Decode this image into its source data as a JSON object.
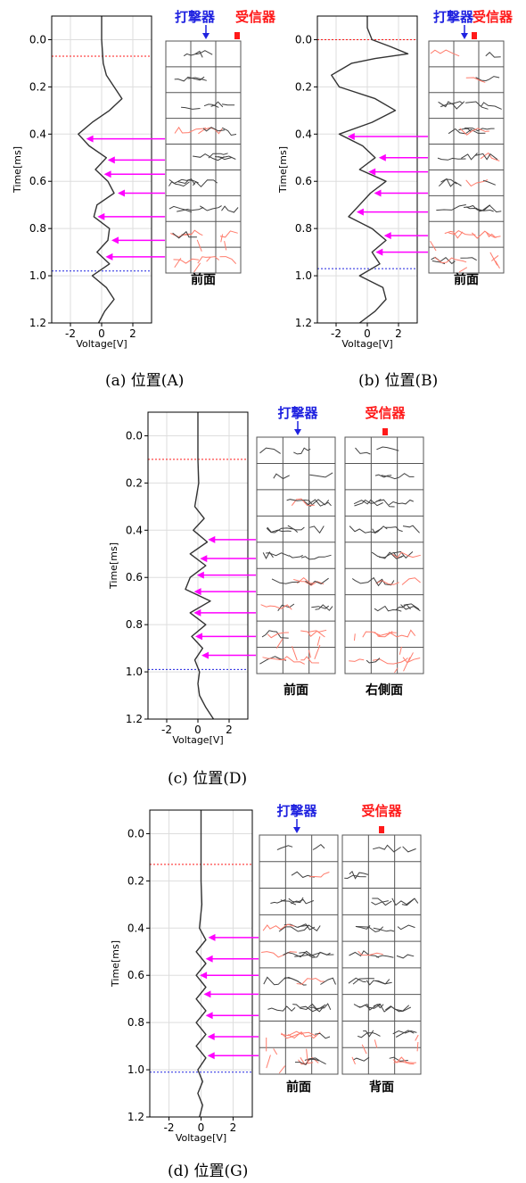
{
  "colors": {
    "hammer": "#1f22e0",
    "receiver": "#ff1a1a",
    "arrow": "#ff00ff",
    "trace": "#333333",
    "grid": "#dddddd",
    "crack_black": "#404040",
    "crack_red": "#ff7b6b"
  },
  "chart_data": [
    {
      "type": "line",
      "caption": "(a) 位置(A)",
      "xlabel": "Voltage[V]",
      "ylabel": "Time[ms]",
      "xlim": [
        -3.2,
        3.2
      ],
      "ylim": [
        1.2,
        -0.1
      ],
      "xticks": [
        -2,
        0,
        2
      ],
      "yticks": [
        "0.0",
        "0.2",
        "0.4",
        "0.6",
        "0.8",
        "1.0",
        "1.2"
      ],
      "grid": true,
      "red_line_t": 0.07,
      "blue_line_t": 0.98,
      "series": [
        {
          "t": [
            -0.1,
            0.0,
            0.05,
            0.1,
            0.15,
            0.2,
            0.25,
            0.3,
            0.35,
            0.4,
            0.45,
            0.5,
            0.55,
            0.6,
            0.65,
            0.7,
            0.75,
            0.8,
            0.85,
            0.9,
            0.95,
            1.0,
            1.05,
            1.1,
            1.15,
            1.2
          ],
          "v": [
            0,
            0,
            0.05,
            0.1,
            0.3,
            0.8,
            1.3,
            0.5,
            -0.6,
            -1.5,
            -0.8,
            0.3,
            -0.4,
            0.4,
            0.8,
            -0.3,
            -0.5,
            0.5,
            0.4,
            -0.3,
            0.5,
            -0.6,
            0.3,
            0.8,
            0.2,
            -0.2
          ]
        }
      ],
      "arrows_t": [
        0.42,
        0.51,
        0.57,
        0.65,
        0.75,
        0.85,
        0.92
      ],
      "hammer_label": "打撃器",
      "receiver_label": "受信器",
      "panel_labels": [
        "前面"
      ]
    },
    {
      "type": "line",
      "caption": "(b) 位置(B)",
      "xlabel": "Voltage[V]",
      "ylabel": "Time[ms]",
      "xlim": [
        -3.2,
        3.2
      ],
      "ylim": [
        1.2,
        -0.1
      ],
      "xticks": [
        -2,
        0,
        2
      ],
      "yticks": [
        "0.0",
        "0.2",
        "0.4",
        "0.6",
        "0.8",
        "1.0",
        "1.2"
      ],
      "grid": true,
      "red_line_t": 0.0,
      "blue_line_t": 0.97,
      "series": [
        {
          "t": [
            -0.1,
            -0.05,
            0.0,
            0.03,
            0.06,
            0.08,
            0.1,
            0.15,
            0.2,
            0.25,
            0.3,
            0.35,
            0.4,
            0.45,
            0.5,
            0.55,
            0.6,
            0.65,
            0.7,
            0.75,
            0.8,
            0.85,
            0.9,
            0.95,
            1.0,
            1.05,
            1.1,
            1.15,
            1.2
          ],
          "v": [
            0,
            0,
            0.3,
            1.5,
            2.6,
            0.5,
            -1.0,
            -2.3,
            -1.8,
            0.5,
            1.8,
            0.3,
            -1.8,
            -0.3,
            0.5,
            -0.5,
            1.2,
            0.2,
            -0.5,
            -1.2,
            0.3,
            1.2,
            0.3,
            0.8,
            -0.5,
            1.0,
            1.2,
            0.5,
            -0.5
          ]
        }
      ],
      "arrows_t": [
        0.41,
        0.5,
        0.56,
        0.65,
        0.73,
        0.83,
        0.9
      ],
      "hammer_label": "打撃器",
      "receiver_label": "受信器",
      "panel_labels": [
        "前面"
      ]
    },
    {
      "type": "line",
      "caption": "(c) 位置(D)",
      "xlabel": "Voltage[V]",
      "ylabel": "Time[ms]",
      "xlim": [
        -3.2,
        3.2
      ],
      "ylim": [
        1.2,
        -0.1
      ],
      "xticks": [
        -2,
        0,
        2
      ],
      "yticks": [
        "0.0",
        "0.2",
        "0.4",
        "0.6",
        "0.8",
        "1.0",
        "1.2"
      ],
      "grid": true,
      "red_line_t": 0.1,
      "blue_line_t": 0.99,
      "series": [
        {
          "t": [
            -0.1,
            0.1,
            0.2,
            0.3,
            0.35,
            0.4,
            0.45,
            0.5,
            0.55,
            0.6,
            0.65,
            0.7,
            0.75,
            0.8,
            0.85,
            0.9,
            0.95,
            1.0,
            1.05,
            1.1,
            1.15,
            1.2
          ],
          "v": [
            0,
            0,
            0.05,
            -0.2,
            0.4,
            -0.3,
            0.6,
            -0.5,
            0.5,
            -0.5,
            -0.8,
            0.8,
            -0.5,
            0.5,
            -0.4,
            0.3,
            -0.2,
            0.1,
            0.0,
            0.1,
            0.5,
            1.0
          ]
        }
      ],
      "arrows_t": [
        0.44,
        0.52,
        0.59,
        0.66,
        0.75,
        0.85,
        0.93
      ],
      "hammer_label": "打撃器",
      "receiver_label": "受信器",
      "panel_labels": [
        "前面",
        "右側面"
      ]
    },
    {
      "type": "line",
      "caption": "(d) 位置(G)",
      "xlabel": "Voltage[V]",
      "ylabel": "Time[ms]",
      "xlim": [
        -3.2,
        3.2
      ],
      "ylim": [
        1.2,
        -0.1
      ],
      "xticks": [
        -2,
        0,
        2
      ],
      "yticks": [
        "0.0",
        "0.2",
        "0.4",
        "0.6",
        "0.8",
        "1.0",
        "1.2"
      ],
      "grid": true,
      "red_line_t": 0.13,
      "blue_line_t": 1.01,
      "series": [
        {
          "t": [
            -0.1,
            0.1,
            0.2,
            0.3,
            0.4,
            0.45,
            0.5,
            0.55,
            0.6,
            0.65,
            0.7,
            0.75,
            0.8,
            0.85,
            0.9,
            0.95,
            1.0,
            1.05,
            1.1,
            1.15,
            1.2
          ],
          "v": [
            0,
            0,
            0,
            0.05,
            -0.1,
            0.3,
            -0.3,
            0.3,
            -0.3,
            0.3,
            -0.3,
            0.3,
            -0.3,
            0.3,
            -0.3,
            0.3,
            -0.2,
            0.1,
            -0.2,
            0.1,
            -0.1
          ]
        }
      ],
      "arrows_t": [
        0.44,
        0.53,
        0.6,
        0.68,
        0.77,
        0.86,
        0.94
      ],
      "hammer_label": "打撃器",
      "receiver_label": "受信器",
      "panel_labels": [
        "前面",
        "背面"
      ]
    }
  ]
}
